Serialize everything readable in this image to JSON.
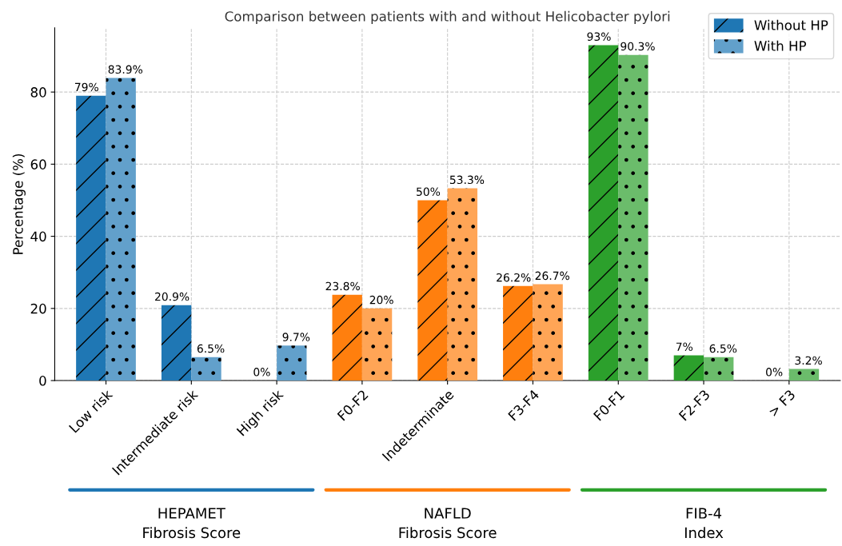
{
  "chart_data": {
    "type": "bar",
    "title": "Comparison between patients with and without Helicobacter pylori",
    "ylabel": "Percentage (%)",
    "categories": [
      "Low risk",
      "Intermediate risk",
      "High risk",
      "F0-F2",
      "Indeterminate",
      "F3-F4",
      "F0-F1",
      "F2-F3",
      "> F3"
    ],
    "series": [
      {
        "name": "Without HP",
        "colors": [
          "#1f77b4",
          "#1f77b4",
          "#1f77b4",
          "#ff7f0e",
          "#ff7f0e",
          "#ff7f0e",
          "#2ca02c",
          "#2ca02c",
          "#2ca02c"
        ],
        "values": [
          79,
          20.9,
          0,
          23.8,
          50,
          26.2,
          93,
          7,
          0
        ],
        "value_labels": [
          "79%",
          "20.9%",
          "0%",
          "23.8%",
          "50%",
          "26.2%",
          "93%",
          "7%",
          "0%"
        ]
      },
      {
        "name": "With HP",
        "colors": [
          "#62a0cb",
          "#62a0cb",
          "#62a0cb",
          "#ffa556",
          "#ffa556",
          "#ffa556",
          "#6bbc6b",
          "#6bbc6b",
          "#6bbc6b"
        ],
        "values": [
          83.9,
          6.5,
          9.7,
          20,
          53.3,
          26.7,
          90.3,
          6.5,
          3.2
        ],
        "value_labels": [
          "83.9%",
          "6.5%",
          "9.7%",
          "20%",
          "53.3%",
          "26.7%",
          "90.3%",
          "6.5%",
          "3.2%"
        ]
      }
    ],
    "ylim": [
      0,
      97.8
    ],
    "yticks": [
      0,
      20,
      40,
      60,
      80
    ],
    "grid": true,
    "legend": "top right",
    "annotations": [
      "HEPAMET\nFibrosis Score",
      "NAFLD\nFibrosis Score",
      "FIB-4\nIndex"
    ]
  }
}
